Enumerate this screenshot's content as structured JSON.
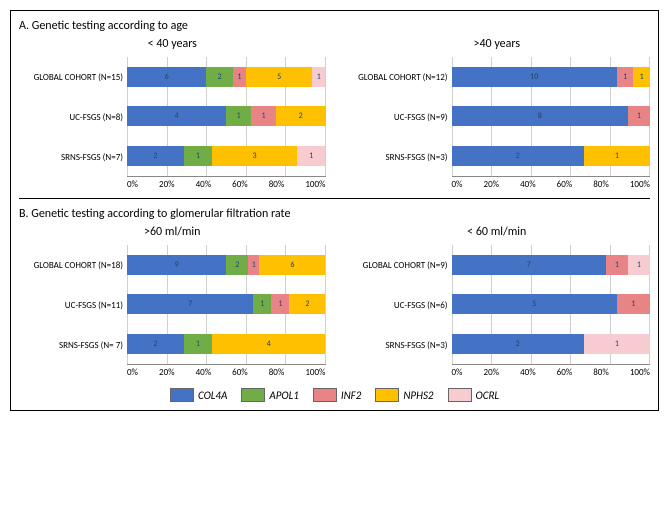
{
  "colors": {
    "COL4A": "#4472c4",
    "APOL1": "#70ad47",
    "INF2": "#e88486",
    "NPHS2": "#ffc000",
    "OCRL": "#f8cbd0",
    "grid": "#d0d0d0",
    "text": "#000000",
    "seg_text": "#25426b"
  },
  "legend": [
    {
      "key": "COL4A",
      "label": "COL4A"
    },
    {
      "key": "APOL1",
      "label": "APOL1"
    },
    {
      "key": "INF2",
      "label": "INF2"
    },
    {
      "key": "NPHS2",
      "label": "NPHS2"
    },
    {
      "key": "OCRL",
      "label": "OCRL"
    }
  ],
  "x_ticks": [
    "0%",
    "20%",
    "40%",
    "60%",
    "80%",
    "100%"
  ],
  "sections": [
    {
      "title": "A. Genetic testing according to age",
      "panels": [
        {
          "title": "< 40 years",
          "rows": [
            {
              "label": "GLOBAL COHORT (N=15)",
              "segs": [
                {
                  "k": "COL4A",
                  "v": 6
                },
                {
                  "k": "APOL1",
                  "v": 2
                },
                {
                  "k": "INF2",
                  "v": 1
                },
                {
                  "k": "NPHS2",
                  "v": 5
                },
                {
                  "k": "OCRL",
                  "v": 1
                }
              ]
            },
            {
              "label": "UC-FSGS (N=8)",
              "segs": [
                {
                  "k": "COL4A",
                  "v": 4
                },
                {
                  "k": "APOL1",
                  "v": 1
                },
                {
                  "k": "INF2",
                  "v": 1
                },
                {
                  "k": "NPHS2",
                  "v": 2
                }
              ]
            },
            {
              "label": "SRNS-FSGS (N=7)",
              "segs": [
                {
                  "k": "COL4A",
                  "v": 2
                },
                {
                  "k": "APOL1",
                  "v": 1
                },
                {
                  "k": "NPHS2",
                  "v": 3
                },
                {
                  "k": "OCRL",
                  "v": 1
                }
              ]
            }
          ]
        },
        {
          "title": ">40 years",
          "rows": [
            {
              "label": "GLOBAL COHORT (N=12)",
              "segs": [
                {
                  "k": "COL4A",
                  "v": 10
                },
                {
                  "k": "INF2",
                  "v": 1
                },
                {
                  "k": "NPHS2",
                  "v": 1
                }
              ]
            },
            {
              "label": "UC-FSGS (N=9)",
              "segs": [
                {
                  "k": "COL4A",
                  "v": 8
                },
                {
                  "k": "INF2",
                  "v": 1
                }
              ]
            },
            {
              "label": "SRNS-FSGS (N=3)",
              "segs": [
                {
                  "k": "COL4A",
                  "v": 2
                },
                {
                  "k": "NPHS2",
                  "v": 1
                }
              ]
            }
          ]
        }
      ]
    },
    {
      "title": "B. Genetic testing according to glomerular filtration rate",
      "panels": [
        {
          "title": ">60 ml/min",
          "rows": [
            {
              "label": "GLOBAL COHORT (N=18)",
              "segs": [
                {
                  "k": "COL4A",
                  "v": 9
                },
                {
                  "k": "APOL1",
                  "v": 2
                },
                {
                  "k": "INF2",
                  "v": 1
                },
                {
                  "k": "NPHS2",
                  "v": 6
                }
              ]
            },
            {
              "label": "UC-FSGS (N=11)",
              "segs": [
                {
                  "k": "COL4A",
                  "v": 7
                },
                {
                  "k": "APOL1",
                  "v": 1
                },
                {
                  "k": "INF2",
                  "v": 1
                },
                {
                  "k": "NPHS2",
                  "v": 2
                }
              ]
            },
            {
              "label": "SRNS-FSGS (N= 7)",
              "segs": [
                {
                  "k": "COL4A",
                  "v": 2
                },
                {
                  "k": "APOL1",
                  "v": 1
                },
                {
                  "k": "NPHS2",
                  "v": 4
                }
              ]
            }
          ]
        },
        {
          "title": "< 60 ml/min",
          "rows": [
            {
              "label": "GLOBAL COHORT (N=9)",
              "segs": [
                {
                  "k": "COL4A",
                  "v": 7
                },
                {
                  "k": "INF2",
                  "v": 1
                },
                {
                  "k": "OCRL",
                  "v": 1
                }
              ]
            },
            {
              "label": "UC-FSGS (N=6)",
              "segs": [
                {
                  "k": "COL4A",
                  "v": 5
                },
                {
                  "k": "INF2",
                  "v": 1
                }
              ]
            },
            {
              "label": "SRNS-FSGS (N=3)",
              "segs": [
                {
                  "k": "COL4A",
                  "v": 2
                },
                {
                  "k": "OCRL",
                  "v": 1
                }
              ]
            }
          ]
        }
      ]
    }
  ]
}
